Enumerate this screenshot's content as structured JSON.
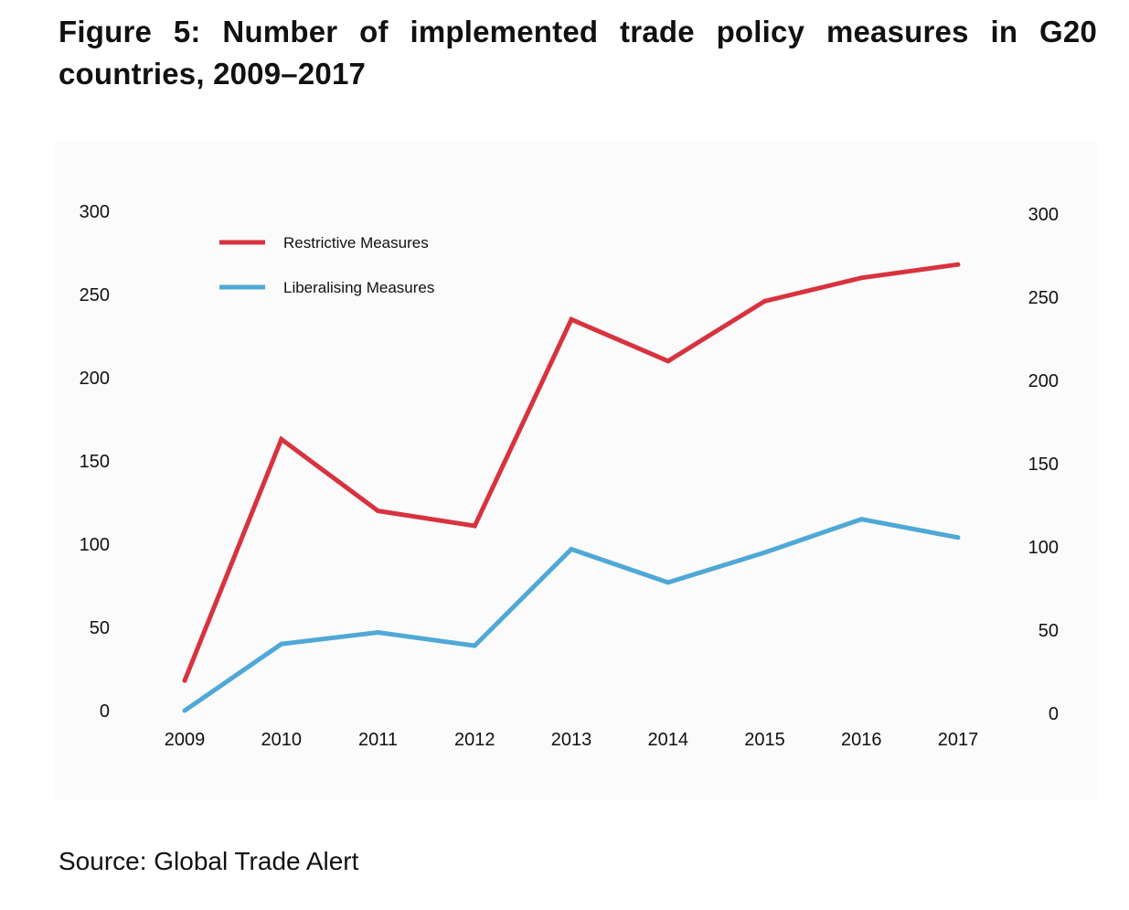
{
  "figure": {
    "title": "Figure 5: Number of implemented trade policy measures in G20 countries, 2009–2017",
    "source": "Source: Global Trade Alert"
  },
  "chart_data": {
    "type": "line",
    "title": "Number of implemented trade policy measures in G20 countries, 2009–2017",
    "xlabel": "",
    "ylabel": "",
    "categories": [
      "2009",
      "2010",
      "2011",
      "2012",
      "2013",
      "2014",
      "2015",
      "2016",
      "2017"
    ],
    "series": [
      {
        "name": "Restrictive Measures",
        "color": "#d7333f",
        "values": [
          18,
          163,
          120,
          111,
          235,
          210,
          246,
          260,
          268
        ]
      },
      {
        "name": "Liberalising Measures",
        "color": "#4fa8d5",
        "values": [
          0,
          40,
          47,
          39,
          97,
          77,
          95,
          115,
          104
        ]
      }
    ],
    "ylim": [
      0,
      300
    ],
    "yticks": [
      0,
      50,
      100,
      150,
      200,
      250,
      300
    ],
    "y_axis_sides": [
      "left",
      "right"
    ],
    "grid": false,
    "legend_position": "top-left"
  }
}
